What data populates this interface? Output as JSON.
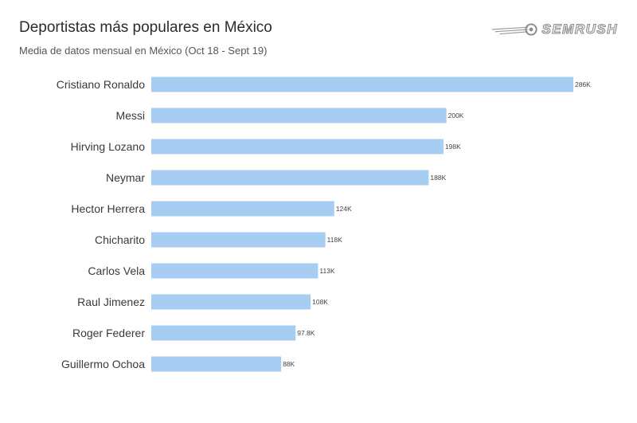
{
  "title": "Deportistas más populares en México",
  "subtitle": "Media de datos mensual en México (Oct 18 - Sept 19)",
  "logo": {
    "text": "SEMRUSH",
    "icon": "semrush-comet-icon"
  },
  "colors": {
    "bar": "#a8cdf2",
    "text": "#3a3a3a"
  },
  "chart_data": {
    "type": "bar",
    "orientation": "horizontal",
    "title": "Deportistas más populares en México",
    "subtitle": "Media de datos mensual en México (Oct 18 - Sept 19)",
    "categories": [
      "Cristiano Ronaldo",
      "Messi",
      "Hirving Lozano",
      "Neymar",
      "Hector Herrera",
      "Chicharito",
      "Carlos Vela",
      "Raul Jimenez",
      "Roger Federer",
      "Guillermo Ochoa"
    ],
    "values": [
      286000,
      200000,
      198000,
      188000,
      124000,
      118000,
      113000,
      108000,
      97800,
      88000
    ],
    "value_labels": [
      "286K",
      "200K",
      "198K",
      "188K",
      "124K",
      "118K",
      "113K",
      "108K",
      "97.8K",
      "88K"
    ],
    "xlim": [
      0,
      286000
    ],
    "grid": false,
    "legend": "none"
  }
}
